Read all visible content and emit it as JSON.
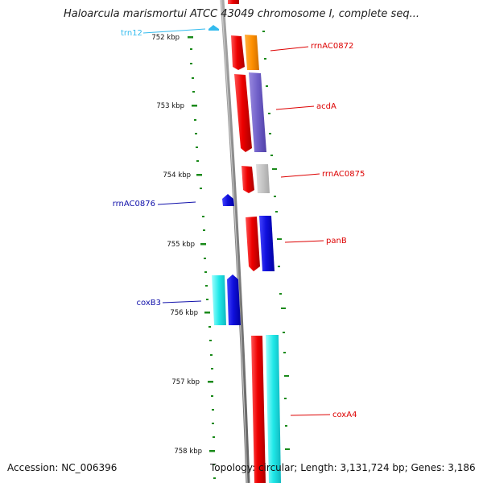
{
  "title": "Haloarcula marismortui ATCC 43049 chromosome I, complete seq...",
  "footer": {
    "accession": "Accession: NC_006396",
    "summary": "Topology: circular; Length: 3,131,724 bp; Genes: 3,186"
  },
  "ruler": {
    "ticks": [
      "752 kbp",
      "753 kbp",
      "754 kbp",
      "755 kbp",
      "756 kbp",
      "757 kbp",
      "758 kbp"
    ],
    "tick_color": "#1a8a1a"
  },
  "features": [
    {
      "label": "trn12",
      "type": "tRNA",
      "color": "#33bbee"
    },
    {
      "label": "rrnAC0872",
      "type": "gene",
      "color": "#e00000"
    },
    {
      "label": "acdA",
      "type": "gene",
      "color": "#e00000"
    },
    {
      "label": "rrnAC0875",
      "type": "gene",
      "color": "#e00000"
    },
    {
      "label": "rrnAC0876",
      "type": "gene",
      "color": "#1010cc"
    },
    {
      "label": "panB",
      "type": "gene",
      "color": "#e00000"
    },
    {
      "label": "coxB3",
      "type": "gene",
      "color": "#1010cc"
    },
    {
      "label": "coxA4",
      "type": "gene",
      "color": "#e00000"
    }
  ],
  "colors": {
    "backbone": "#888888",
    "forward_gene": "#ee1111",
    "reverse_gene": "#1111ee",
    "orange_track": "#ff9910",
    "purple_track": "#7766cc",
    "gray_track": "#c4c4c4",
    "cyan_track": "#22e8e8"
  }
}
